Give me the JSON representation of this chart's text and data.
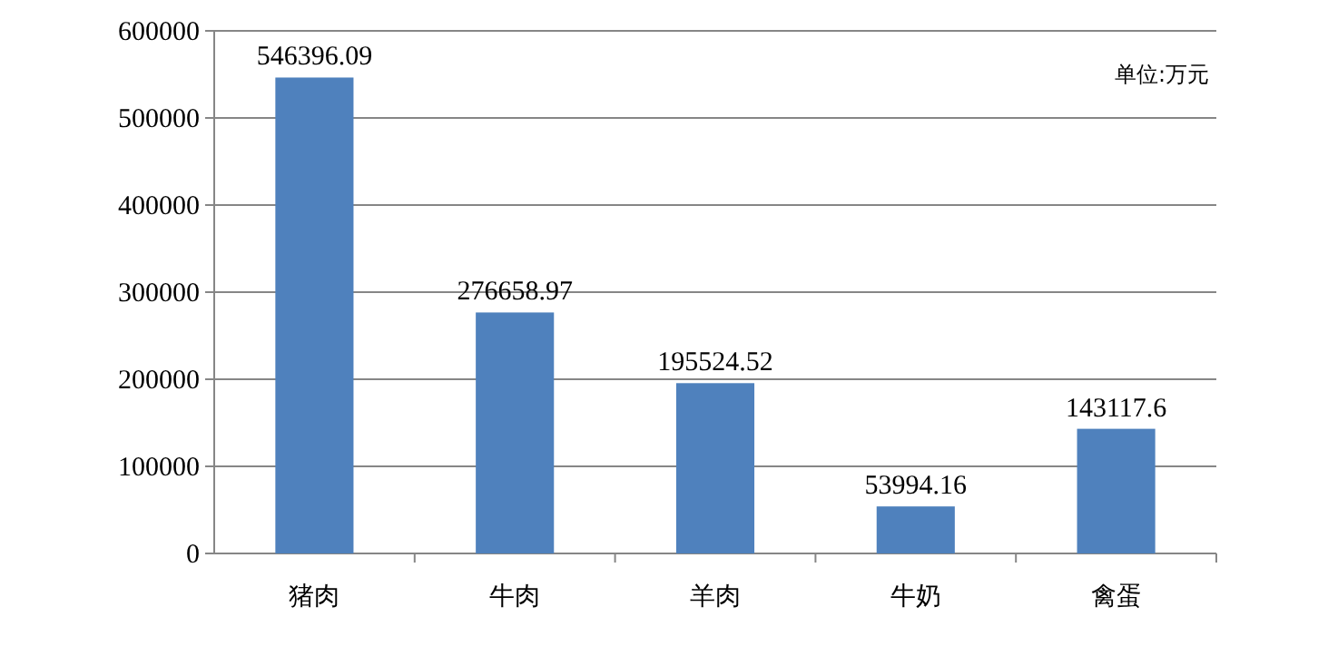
{
  "chart_data": {
    "type": "bar",
    "categories": [
      "猪肉",
      "牛肉",
      "羊肉",
      "牛奶",
      "禽蛋"
    ],
    "values": [
      546396.09,
      276658.97,
      195524.52,
      53994.16,
      143117.6
    ],
    "color": "#4f81bd",
    "ylim": [
      0,
      600000
    ],
    "yticks": [
      0,
      100000,
      200000,
      300000,
      400000,
      500000,
      600000
    ],
    "grid": "y",
    "data_labels": true,
    "annotations": [
      "单位:万元"
    ]
  }
}
